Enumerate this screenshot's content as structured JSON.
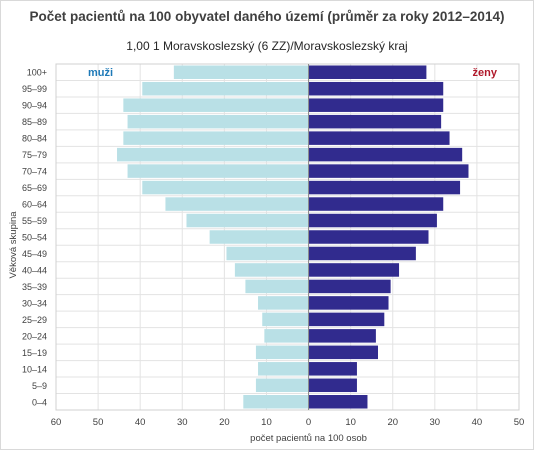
{
  "chart_data": {
    "type": "bar",
    "title": "Počet pacientů na 100 obyvatel daného území (průměr za roky 2012–2014)",
    "subtitle": "1,00 1  Moravskoslezský (6 ZZ)/Moravskoslezský kraj",
    "xlabel": "počet pacientů na 100 osob",
    "ylabel": "Věková skupina",
    "xlim": [
      -60,
      50
    ],
    "x_tick_labels": [
      "60",
      "50",
      "40",
      "30",
      "20",
      "10",
      "0",
      "10",
      "20",
      "30",
      "40",
      "50"
    ],
    "categories": [
      "100+",
      "95–99",
      "90–94",
      "85–89",
      "80–84",
      "75–79",
      "70–74",
      "65–69",
      "60–64",
      "55–59",
      "50–54",
      "45–49",
      "40–44",
      "35–39",
      "30–34",
      "25–29",
      "20–24",
      "15–19",
      "10–14",
      "5–9",
      "0–4"
    ],
    "series": [
      {
        "name": "muži",
        "color": "#b9e0e6",
        "label_color": "#1f7ab8",
        "values": [
          32,
          39.5,
          44,
          43,
          44,
          45.5,
          43,
          39.5,
          34,
          29,
          23.5,
          19.5,
          17.5,
          15,
          12,
          11,
          10.5,
          12.5,
          12,
          12.5,
          15.5
        ]
      },
      {
        "name": "ženy",
        "color": "#312b8e",
        "label_color": "#b0182a",
        "values": [
          28,
          32,
          32,
          31.5,
          33.5,
          36.5,
          38,
          36,
          32,
          30.5,
          28.5,
          25.5,
          21.5,
          19.5,
          19,
          18,
          16,
          16.5,
          11.5,
          11.5,
          14
        ]
      }
    ],
    "grid": true,
    "legend": "labels inside plot, top-left and top-right"
  }
}
